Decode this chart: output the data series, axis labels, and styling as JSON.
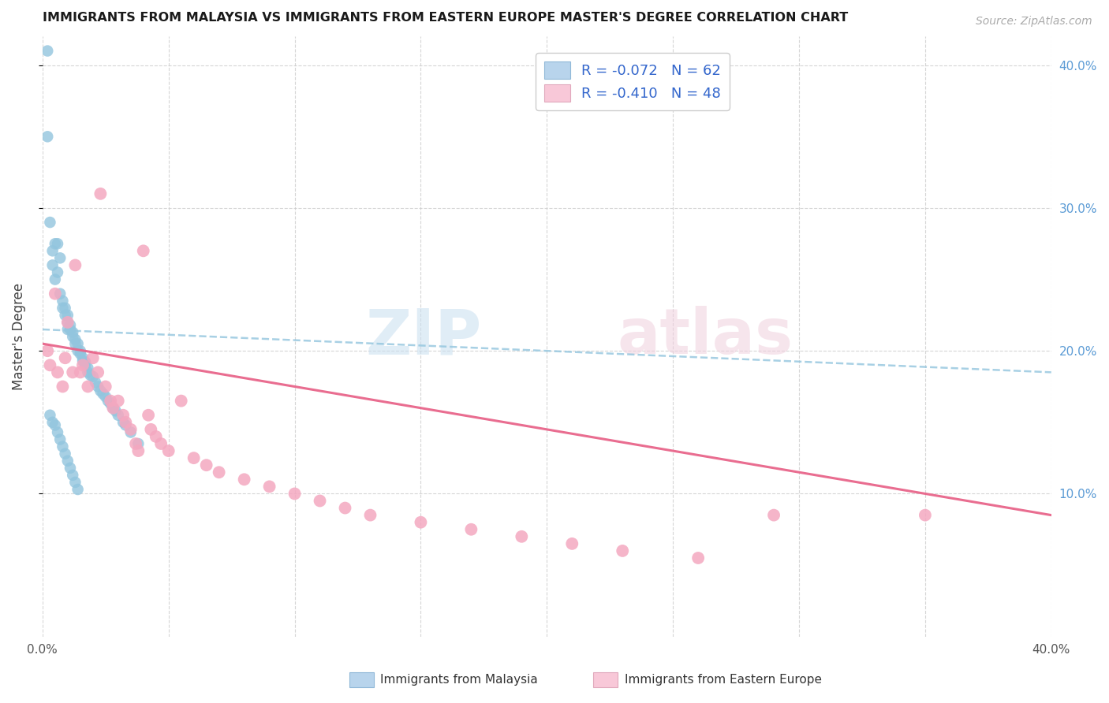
{
  "title": "IMMIGRANTS FROM MALAYSIA VS IMMIGRANTS FROM EASTERN EUROPE MASTER'S DEGREE CORRELATION CHART",
  "source": "Source: ZipAtlas.com",
  "ylabel": "Master's Degree",
  "xlim": [
    0.0,
    0.4
  ],
  "ylim": [
    0.0,
    0.42
  ],
  "color_malaysia": "#92c5de",
  "color_eastern_europe": "#f4a8c0",
  "color_trend_malaysia": "#92c5de",
  "color_trend_eastern_europe": "#e8658a",
  "malaysia_x": [
    0.002,
    0.002,
    0.003,
    0.004,
    0.004,
    0.005,
    0.005,
    0.006,
    0.006,
    0.007,
    0.007,
    0.008,
    0.008,
    0.009,
    0.009,
    0.01,
    0.01,
    0.01,
    0.011,
    0.011,
    0.012,
    0.012,
    0.013,
    0.013,
    0.014,
    0.014,
    0.015,
    0.015,
    0.016,
    0.016,
    0.017,
    0.017,
    0.018,
    0.018,
    0.019,
    0.02,
    0.021,
    0.022,
    0.023,
    0.024,
    0.025,
    0.026,
    0.027,
    0.028,
    0.029,
    0.03,
    0.032,
    0.033,
    0.035,
    0.038,
    0.003,
    0.004,
    0.005,
    0.006,
    0.007,
    0.008,
    0.009,
    0.01,
    0.011,
    0.012,
    0.013,
    0.014
  ],
  "malaysia_y": [
    0.41,
    0.35,
    0.29,
    0.27,
    0.26,
    0.275,
    0.25,
    0.275,
    0.255,
    0.265,
    0.24,
    0.235,
    0.23,
    0.225,
    0.23,
    0.225,
    0.22,
    0.215,
    0.218,
    0.215,
    0.213,
    0.21,
    0.208,
    0.205,
    0.205,
    0.2,
    0.2,
    0.198,
    0.195,
    0.193,
    0.192,
    0.19,
    0.188,
    0.185,
    0.183,
    0.182,
    0.178,
    0.175,
    0.172,
    0.17,
    0.168,
    0.165,
    0.163,
    0.16,
    0.158,
    0.155,
    0.15,
    0.148,
    0.143,
    0.135,
    0.155,
    0.15,
    0.148,
    0.143,
    0.138,
    0.133,
    0.128,
    0.123,
    0.118,
    0.113,
    0.108,
    0.103
  ],
  "eastern_europe_x": [
    0.002,
    0.003,
    0.005,
    0.006,
    0.008,
    0.009,
    0.01,
    0.012,
    0.013,
    0.015,
    0.016,
    0.018,
    0.02,
    0.022,
    0.023,
    0.025,
    0.027,
    0.028,
    0.03,
    0.032,
    0.033,
    0.035,
    0.037,
    0.038,
    0.04,
    0.042,
    0.043,
    0.045,
    0.047,
    0.05,
    0.055,
    0.06,
    0.065,
    0.07,
    0.08,
    0.09,
    0.1,
    0.11,
    0.12,
    0.13,
    0.15,
    0.17,
    0.19,
    0.21,
    0.23,
    0.26,
    0.29,
    0.35
  ],
  "eastern_europe_y": [
    0.2,
    0.19,
    0.24,
    0.185,
    0.175,
    0.195,
    0.22,
    0.185,
    0.26,
    0.185,
    0.19,
    0.175,
    0.195,
    0.185,
    0.31,
    0.175,
    0.165,
    0.16,
    0.165,
    0.155,
    0.15,
    0.145,
    0.135,
    0.13,
    0.27,
    0.155,
    0.145,
    0.14,
    0.135,
    0.13,
    0.165,
    0.125,
    0.12,
    0.115,
    0.11,
    0.105,
    0.1,
    0.095,
    0.09,
    0.085,
    0.08,
    0.075,
    0.07,
    0.065,
    0.06,
    0.055,
    0.085,
    0.085
  ],
  "trend_mal_x0": 0.0,
  "trend_mal_x1": 0.4,
  "trend_mal_y0": 0.215,
  "trend_mal_y1": 0.185,
  "trend_ee_x0": 0.0,
  "trend_ee_x1": 0.4,
  "trend_ee_y0": 0.205,
  "trend_ee_y1": 0.085
}
